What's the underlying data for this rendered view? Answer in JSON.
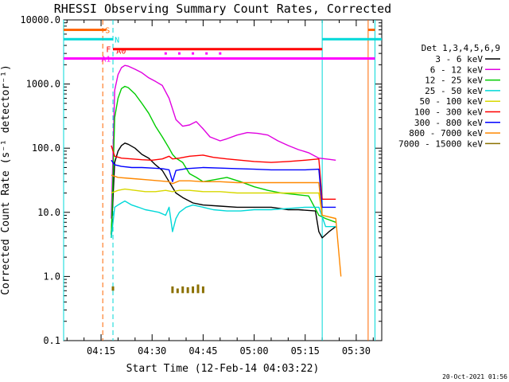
{
  "chart_data": {
    "type": "line",
    "title": "RHESSI Observing Summary Count Rates, Corrected",
    "xlabel": "Start Time (12-Feb-14 04:03:22)",
    "ylabel": "Corrected Count Rate (s⁻¹ detector⁻¹)",
    "y_scale": "log",
    "ylim": [
      0.1,
      10000
    ],
    "xlim_minutes": [
      4.0,
      97.5
    ],
    "x_ticks": [
      {
        "minute": 15,
        "label": "04:15"
      },
      {
        "minute": 30,
        "label": "04:30"
      },
      {
        "minute": 45,
        "label": "04:45"
      },
      {
        "minute": 60,
        "label": "05:00"
      },
      {
        "minute": 75,
        "label": "05:15"
      },
      {
        "minute": 90,
        "label": "05:30"
      }
    ],
    "y_ticks": [
      {
        "value": 10000,
        "label": "10000.0"
      },
      {
        "value": 1000,
        "label": "1000.0"
      },
      {
        "value": 100,
        "label": "100.0"
      },
      {
        "value": 10,
        "label": "10.0"
      },
      {
        "value": 1,
        "label": "1.0"
      },
      {
        "value": 0.1,
        "label": "0.1"
      }
    ],
    "legend_title": "Det 1,3,4,5,6,9",
    "legend_position": "right",
    "grid": false,
    "series": [
      {
        "name": "3 - 6 keV",
        "color": "#000000",
        "points": [
          [
            18,
            4.5
          ],
          [
            19,
            60
          ],
          [
            20,
            90
          ],
          [
            21,
            110
          ],
          [
            22,
            120
          ],
          [
            23,
            115
          ],
          [
            25,
            100
          ],
          [
            27,
            80
          ],
          [
            29,
            70
          ],
          [
            31,
            55
          ],
          [
            33,
            45
          ],
          [
            35,
            30
          ],
          [
            37,
            20
          ],
          [
            39,
            17
          ],
          [
            42,
            14
          ],
          [
            45,
            13
          ],
          [
            50,
            12.5
          ],
          [
            55,
            12
          ],
          [
            60,
            12
          ],
          [
            65,
            12
          ],
          [
            70,
            11
          ],
          [
            73,
            11
          ],
          [
            78,
            10.5
          ],
          [
            79,
            5
          ],
          [
            80,
            4
          ],
          [
            82,
            5
          ],
          [
            84,
            6
          ]
        ]
      },
      {
        "name": "6 - 12 keV",
        "color": "#e000e0",
        "points": [
          [
            18,
            8
          ],
          [
            19,
            800
          ],
          [
            20,
            1400
          ],
          [
            21,
            1800
          ],
          [
            22,
            1950
          ],
          [
            23,
            1900
          ],
          [
            25,
            1700
          ],
          [
            27,
            1500
          ],
          [
            29,
            1250
          ],
          [
            31,
            1100
          ],
          [
            33,
            950
          ],
          [
            35,
            600
          ],
          [
            37,
            280
          ],
          [
            39,
            220
          ],
          [
            41,
            230
          ],
          [
            43,
            260
          ],
          [
            45,
            200
          ],
          [
            47,
            150
          ],
          [
            50,
            130
          ],
          [
            52,
            140
          ],
          [
            55,
            160
          ],
          [
            58,
            175
          ],
          [
            61,
            170
          ],
          [
            64,
            160
          ],
          [
            67,
            130
          ],
          [
            70,
            110
          ],
          [
            73,
            95
          ],
          [
            76,
            85
          ],
          [
            79,
            70
          ],
          [
            82,
            67
          ],
          [
            84,
            65
          ]
        ]
      },
      {
        "name": "12 - 25 keV",
        "color": "#00cc00",
        "points": [
          [
            18,
            4
          ],
          [
            19,
            300
          ],
          [
            20,
            600
          ],
          [
            21,
            850
          ],
          [
            22,
            920
          ],
          [
            23,
            880
          ],
          [
            25,
            700
          ],
          [
            27,
            500
          ],
          [
            29,
            350
          ],
          [
            31,
            220
          ],
          [
            33,
            150
          ],
          [
            35,
            100
          ],
          [
            36,
            80
          ],
          [
            37,
            70
          ],
          [
            39,
            60
          ],
          [
            41,
            40
          ],
          [
            43,
            35
          ],
          [
            45,
            30
          ],
          [
            48,
            32
          ],
          [
            52,
            35
          ],
          [
            56,
            30
          ],
          [
            60,
            25
          ],
          [
            64,
            22
          ],
          [
            68,
            20
          ],
          [
            72,
            19
          ],
          [
            76,
            18
          ],
          [
            79,
            9
          ],
          [
            81,
            8
          ],
          [
            84,
            7
          ]
        ]
      },
      {
        "name": "25 - 50 keV",
        "color": "#00d8d8",
        "points": [
          [
            18,
            4
          ],
          [
            19,
            12
          ],
          [
            20,
            13
          ],
          [
            21,
            14
          ],
          [
            22,
            15
          ],
          [
            24,
            13
          ],
          [
            26,
            12
          ],
          [
            28,
            11
          ],
          [
            30,
            10.5
          ],
          [
            32,
            10
          ],
          [
            34,
            9
          ],
          [
            35,
            12
          ],
          [
            36,
            5
          ],
          [
            37,
            8
          ],
          [
            38,
            10
          ],
          [
            40,
            12
          ],
          [
            42,
            13
          ],
          [
            45,
            12
          ],
          [
            48,
            11
          ],
          [
            52,
            10.5
          ],
          [
            56,
            10.5
          ],
          [
            60,
            11
          ],
          [
            65,
            11
          ],
          [
            70,
            11.5
          ],
          [
            75,
            12
          ],
          [
            79,
            12
          ],
          [
            81,
            6
          ],
          [
            84,
            6
          ]
        ]
      },
      {
        "name": "50 - 100 keV",
        "color": "#d8d800",
        "points": [
          [
            18,
            20
          ],
          [
            20,
            22
          ],
          [
            22,
            23
          ],
          [
            25,
            22
          ],
          [
            28,
            21
          ],
          [
            31,
            21
          ],
          [
            34,
            22
          ],
          [
            36,
            21
          ],
          [
            38,
            22
          ],
          [
            41,
            22
          ],
          [
            45,
            21
          ],
          [
            50,
            21
          ],
          [
            55,
            20
          ],
          [
            60,
            20
          ],
          [
            65,
            20
          ],
          [
            70,
            20
          ],
          [
            75,
            20
          ],
          [
            79,
            20
          ],
          [
            80,
            9
          ],
          [
            84,
            8
          ]
        ]
      },
      {
        "name": "100 - 300 keV",
        "color": "#ff0000",
        "points": [
          [
            18,
            110
          ],
          [
            19,
            75
          ],
          [
            21,
            70
          ],
          [
            24,
            68
          ],
          [
            27,
            66
          ],
          [
            30,
            65
          ],
          [
            33,
            68
          ],
          [
            35,
            75
          ],
          [
            36,
            68
          ],
          [
            38,
            70
          ],
          [
            41,
            75
          ],
          [
            45,
            78
          ],
          [
            48,
            72
          ],
          [
            52,
            68
          ],
          [
            56,
            65
          ],
          [
            60,
            62
          ],
          [
            65,
            60
          ],
          [
            70,
            62
          ],
          [
            75,
            65
          ],
          [
            79,
            68
          ],
          [
            80,
            16
          ],
          [
            84,
            16
          ]
        ]
      },
      {
        "name": "300 - 800 keV",
        "color": "#0000ff",
        "points": [
          [
            18,
            65
          ],
          [
            19,
            55
          ],
          [
            21,
            52
          ],
          [
            24,
            50
          ],
          [
            27,
            50
          ],
          [
            30,
            49
          ],
          [
            33,
            48
          ],
          [
            35,
            46
          ],
          [
            36,
            30
          ],
          [
            37,
            45
          ],
          [
            40,
            48
          ],
          [
            45,
            50
          ],
          [
            50,
            49
          ],
          [
            55,
            48
          ],
          [
            60,
            47
          ],
          [
            65,
            46
          ],
          [
            70,
            46
          ],
          [
            75,
            46
          ],
          [
            79,
            47
          ],
          [
            80,
            12
          ],
          [
            84,
            12
          ]
        ]
      },
      {
        "name": "800 - 7000 keV",
        "color": "#ff8800",
        "points": [
          [
            18,
            38
          ],
          [
            20,
            35
          ],
          [
            23,
            34
          ],
          [
            26,
            33
          ],
          [
            29,
            32
          ],
          [
            32,
            31
          ],
          [
            35,
            30
          ],
          [
            36,
            28
          ],
          [
            38,
            31
          ],
          [
            41,
            31
          ],
          [
            45,
            30
          ],
          [
            50,
            30
          ],
          [
            55,
            29
          ],
          [
            60,
            29
          ],
          [
            65,
            29
          ],
          [
            70,
            29
          ],
          [
            75,
            29
          ],
          [
            79,
            29
          ],
          [
            80,
            9
          ],
          [
            84,
            8
          ],
          [
            85.5,
            1
          ]
        ]
      },
      {
        "name": "7000 - 15000 keV",
        "color": "#8b7000",
        "points": [
          [
            18.5,
            0.6
          ],
          [
            18.5,
            0.7
          ],
          [
            36,
            0.55
          ],
          [
            36,
            0.7
          ],
          [
            37.5,
            0.55
          ],
          [
            37.5,
            0.65
          ],
          [
            39,
            0.55
          ],
          [
            39,
            0.7
          ],
          [
            40.5,
            0.55
          ],
          [
            40.5,
            0.68
          ],
          [
            42,
            0.55
          ],
          [
            42,
            0.7
          ],
          [
            43.5,
            0.55
          ],
          [
            43.5,
            0.75
          ],
          [
            45,
            0.55
          ],
          [
            45,
            0.7
          ]
        ]
      }
    ],
    "time_intervals": [
      {
        "label": "S",
        "color": "#ff6600",
        "value": 7000,
        "ranges": [
          [
            4.0,
            16.5
          ],
          [
            93.5,
            95.5
          ]
        ]
      },
      {
        "label": "N",
        "color": "#00d8d8",
        "value": 5000,
        "ranges": [
          [
            4.0,
            18.5
          ],
          [
            80.0,
            97.5
          ]
        ]
      },
      {
        "label": "F",
        "color": "#ff0000",
        "value": 3500,
        "ranges": [
          [
            18.5,
            80.0
          ]
        ]
      },
      {
        "label": "A0",
        "color": "#ff0000",
        "value": 3500,
        "ranges": []
      },
      {
        "label": "A1",
        "color": "#ff00ff",
        "value": 2500,
        "ranges": [
          [
            4.0,
            95.5
          ]
        ]
      }
    ],
    "a0_markers_minutes": [
      34,
      38,
      42,
      46,
      50
    ],
    "vertical_markers": [
      {
        "minute": 4.0,
        "color": "#00d8d8",
        "style": "solid"
      },
      {
        "minute": 15.5,
        "color": "#ff6600",
        "style": "dashed"
      },
      {
        "minute": 18.5,
        "color": "#00d8d8",
        "style": "dashed"
      },
      {
        "minute": 80.0,
        "color": "#00d8d8",
        "style": "solid"
      },
      {
        "minute": 93.5,
        "color": "#ff6600",
        "style": "solid"
      },
      {
        "minute": 95.5,
        "color": "#00d8d8",
        "style": "solid"
      }
    ]
  },
  "footer": {
    "timestamp": "20-Oct-2021 01:56"
  }
}
